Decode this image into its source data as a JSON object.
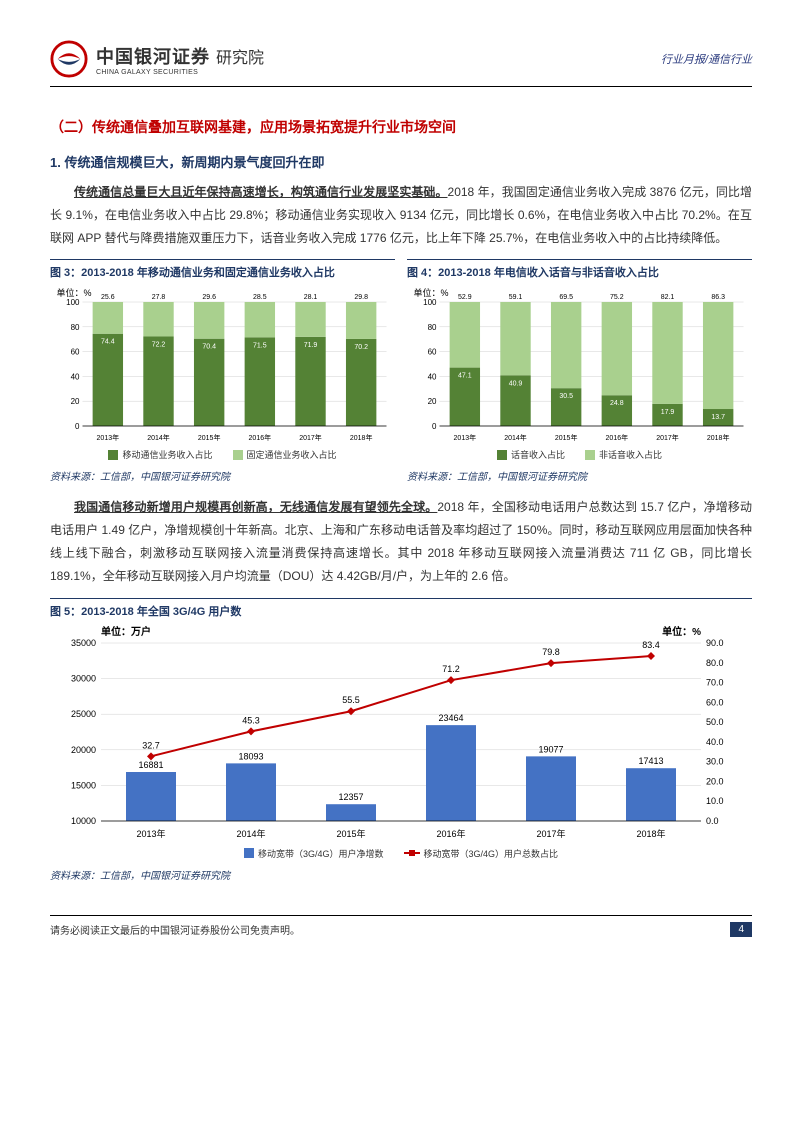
{
  "header": {
    "company_cn": "中国银河证券",
    "company_en": "CHINA GALAXY SECURITIES",
    "suffix": "研究院",
    "right": "行业月报/通信行业"
  },
  "section_title": "（二）传统通信叠加互联网基建，应用场景拓宽提升行业市场空间",
  "sub1": "1. 传统通信规模巨大，新周期内景气度回升在即",
  "para1": {
    "lead": "传统通信总量巨大且近年保持高速增长，构筑通信行业发展坚实基础。",
    "rest": "2018 年，我国固定通信业务收入完成 3876 亿元，同比增长 9.1%，在电信业务收入中占比 29.8%；移动通信业务实现收入 9134 亿元，同比增长 0.6%，在电信业务收入中占比 70.2%。在互联网 APP 替代与降费措施双重压力下，话音业务收入完成 1776 亿元，比上年下降 25.7%，在电信业务收入中的占比持续降低。"
  },
  "chart3": {
    "title": "图 3：2013-2018 年移动通信业务和固定通信业务收入占比",
    "unit": "单位：%",
    "categories": [
      "2013年",
      "2014年",
      "2015年",
      "2016年",
      "2017年",
      "2018年"
    ],
    "series1_label": "移动通信业务收入占比",
    "series2_label": "固定通信业务收入占比",
    "s1": [
      74.4,
      72.2,
      70.4,
      71.5,
      71.9,
      70.2
    ],
    "s2": [
      25.6,
      27.8,
      29.6,
      28.5,
      28.1,
      29.8
    ],
    "s1_color": "#548235",
    "s2_color": "#a9d08e",
    "ymax": 100,
    "yticks": [
      0,
      20,
      40,
      60,
      80,
      100
    ],
    "grid_color": "#d0d0d0",
    "bg": "#ffffff",
    "source": "资料来源：工信部，中国银河证券研究院"
  },
  "chart4": {
    "title": "图 4：2013-2018 年电信收入话音与非话音收入占比",
    "unit": "单位：%",
    "categories": [
      "2013年",
      "2014年",
      "2015年",
      "2016年",
      "2017年",
      "2018年"
    ],
    "series1_label": "话音收入占比",
    "series2_label": "非话音收入占比",
    "s1": [
      47.1,
      40.9,
      30.5,
      24.8,
      17.9,
      13.7
    ],
    "s2": [
      52.9,
      59.1,
      69.5,
      75.2,
      82.1,
      86.3
    ],
    "s1_color": "#548235",
    "s2_color": "#a9d08e",
    "ymax": 100,
    "yticks": [
      0,
      20,
      40,
      60,
      80,
      100
    ],
    "grid_color": "#d0d0d0",
    "bg": "#ffffff",
    "source": "资料来源：工信部，中国银河证券研究院"
  },
  "para2": {
    "lead": "我国通信移动新增用户规模再创新高，无线通信发展有望领先全球。",
    "rest": "2018 年，全国移动电话用户总数达到 15.7 亿户，净增移动电话用户 1.49 亿户，净增规模创十年新高。北京、上海和广东移动电话普及率均超过了 150%。同时，移动互联网应用层面加快各种线上线下融合，刺激移动互联网接入流量消费保持高速增长。其中 2018 年移动互联网接入流量消费达 711 亿 GB，同比增长 189.1%，全年移动互联网接入月户均流量（DOU）达 4.42GB/月/户，为上年的 2.6 倍。"
  },
  "chart5": {
    "title": "图 5：2013-2018 年全国 3G/4G 用户数",
    "unit_left": "单位：万户",
    "unit_right": "单位：%",
    "categories": [
      "2013年",
      "2014年",
      "2015年",
      "2016年",
      "2017年",
      "2018年"
    ],
    "bars": [
      16881,
      18093,
      12357,
      23464,
      19077,
      17413
    ],
    "line": [
      32.7,
      45.3,
      55.5,
      71.2,
      79.8,
      83.4
    ],
    "bar_label": "移动宽带（3G/4G）用户净增数",
    "line_label": "移动宽带（3G/4G）用户总数占比",
    "bar_color": "#4472c4",
    "line_color": "#c00000",
    "yleft_ticks": [
      10000,
      15000,
      20000,
      25000,
      30000,
      35000
    ],
    "yright_ticks": [
      0.0,
      10.0,
      20.0,
      30.0,
      40.0,
      50.0,
      60.0,
      70.0,
      80.0,
      90.0
    ],
    "grid_color": "#d0d0d0",
    "bg": "#ffffff",
    "source": "资料来源：工信部，中国银河证券研究院"
  },
  "footer": {
    "disclaimer": "请务必阅读正文最后的中国银河证券股份公司免责声明。",
    "page": "4"
  }
}
